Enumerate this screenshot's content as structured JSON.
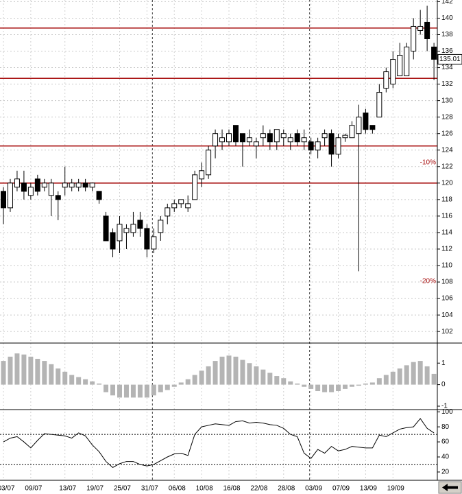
{
  "chart_data": [
    {
      "type": "candlestick",
      "categories": [
        "03/07",
        null,
        null,
        null,
        "09/07",
        null,
        null,
        null,
        null,
        "13/07",
        null,
        null,
        null,
        "19/07",
        null,
        null,
        null,
        "25/07",
        null,
        null,
        null,
        "31/07",
        null,
        null,
        null,
        "06/08",
        null,
        null,
        null,
        "10/08",
        null,
        null,
        null,
        "16/08",
        null,
        null,
        null,
        "22/08",
        null,
        null,
        null,
        "28/08",
        null,
        null,
        null,
        "03/09",
        null,
        null,
        null,
        "07/09",
        null,
        null,
        null,
        "13/09",
        null,
        null,
        null,
        "19/09",
        null,
        null,
        null,
        null,
        null,
        null
      ],
      "open": [
        119,
        117,
        119.5,
        120,
        118.5,
        120.5,
        119.5,
        118.5,
        118.5,
        119.5,
        119.5,
        119.5,
        120,
        119.5,
        119,
        116,
        114,
        113,
        114,
        114,
        115.5,
        114.5,
        112,
        114,
        116,
        117,
        117.5,
        117,
        118,
        120.5,
        121,
        124.5,
        125,
        125,
        127,
        126,
        125,
        124.5,
        125.5,
        126,
        125,
        125.5,
        125,
        126,
        125,
        125,
        124,
        125.5,
        126,
        123.5,
        125.5,
        125.5,
        126,
        128.5,
        127,
        128,
        131.5,
        132,
        133,
        133,
        136,
        138.5,
        139.5,
        136.5
      ],
      "high": [
        119.5,
        120.5,
        121.5,
        121.5,
        120,
        121,
        120.5,
        120.5,
        119,
        122,
        120.5,
        120.5,
        120.5,
        120,
        119,
        116.5,
        114.5,
        116,
        115,
        116.5,
        116.5,
        115,
        114.5,
        116,
        117.5,
        118,
        118,
        118.5,
        121.5,
        122.5,
        124.5,
        126.5,
        126.5,
        126.5,
        127,
        126,
        126.5,
        125.5,
        127,
        126.5,
        126.5,
        126.5,
        126,
        126.5,
        126.5,
        125.5,
        125.5,
        126.5,
        126.5,
        126,
        126,
        127.5,
        129.5,
        129,
        127,
        132,
        134,
        136,
        137,
        137,
        140,
        141,
        141.5,
        137
      ],
      "low": [
        115,
        116.5,
        119,
        118,
        118,
        118.5,
        119,
        116,
        115.5,
        118.5,
        119,
        119,
        119,
        119,
        117.5,
        113,
        111,
        111.5,
        112,
        113.5,
        113.5,
        111,
        111.5,
        113,
        115,
        116.5,
        117,
        116.5,
        118,
        119.5,
        120.5,
        123,
        124,
        124.5,
        124.5,
        122,
        124.5,
        123,
        124.5,
        124,
        124,
        124.5,
        124,
        124.5,
        124,
        123.5,
        123,
        124.5,
        122,
        123,
        125,
        125.5,
        109.3,
        126,
        126,
        128,
        131,
        131.5,
        133,
        133,
        135,
        138,
        136,
        132.5
      ],
      "close": [
        117,
        120,
        120.5,
        119,
        119.5,
        119,
        120,
        120,
        118,
        120,
        120,
        120,
        119.5,
        120,
        118,
        113,
        112,
        115,
        114.5,
        115,
        114.5,
        112,
        113.5,
        115.5,
        117,
        117.5,
        118,
        117.5,
        121,
        121.5,
        124,
        126,
        125.5,
        126,
        125,
        125,
        125.5,
        125,
        126,
        125,
        126.5,
        126,
        125.5,
        125,
        125.5,
        124,
        125,
        126,
        123.5,
        125.5,
        125.8,
        127,
        128,
        126.5,
        126.5,
        131,
        133.5,
        135,
        135.5,
        136.5,
        139,
        139,
        137.5,
        135.01
      ],
      "up_color": "#ffffff",
      "down_color": "#000000",
      "ylim": [
        100.6,
        142.2
      ],
      "yticks": [
        102,
        104,
        106,
        108,
        110,
        112,
        114,
        116,
        118,
        120,
        122,
        124,
        126,
        128,
        130,
        132,
        134,
        136,
        138,
        140,
        142
      ],
      "levels": [
        138.8,
        132.7,
        124.5,
        120
      ],
      "level_color": "#a81010",
      "annotations": [
        {
          "text": "-10%",
          "y": 122.5
        },
        {
          "text": "-20%",
          "y": 108.1
        }
      ],
      "last_price": 135.01,
      "grid": true
    },
    {
      "type": "bar",
      "color": "#b4b4b4",
      "values": [
        1.1,
        1.3,
        1.45,
        1.4,
        1.3,
        1.2,
        1.1,
        0.95,
        0.75,
        0.6,
        0.45,
        0.35,
        0.25,
        0.15,
        0.05,
        -0.35,
        -0.5,
        -0.6,
        -0.6,
        -0.6,
        -0.6,
        -0.6,
        -0.5,
        -0.35,
        -0.25,
        -0.1,
        0.1,
        0.25,
        0.45,
        0.65,
        0.85,
        1.1,
        1.3,
        1.35,
        1.3,
        1.15,
        1.0,
        0.85,
        0.7,
        0.55,
        0.4,
        0.3,
        0.15,
        0.05,
        -0.1,
        -0.2,
        -0.3,
        -0.35,
        -0.35,
        -0.3,
        -0.2,
        -0.1,
        -0.05,
        0.05,
        0.1,
        0.3,
        0.45,
        0.6,
        0.75,
        0.9,
        1.05,
        1.1,
        0.85,
        0.5
      ],
      "ylim": [
        -1.16,
        1.9
      ],
      "yticks": [
        -1,
        0,
        1
      ]
    },
    {
      "type": "line",
      "color": "#000000",
      "values": [
        60,
        65,
        67,
        60,
        52,
        62,
        71,
        70,
        69,
        68,
        65,
        72,
        68,
        56,
        47,
        34,
        26,
        31,
        34,
        34,
        30,
        28,
        30,
        35,
        40,
        44,
        45,
        42,
        70,
        80,
        82,
        84,
        83,
        82,
        87,
        88,
        85,
        86,
        85,
        83,
        82,
        78,
        70,
        67,
        45,
        38,
        50,
        45,
        54,
        48,
        50,
        54,
        53,
        52,
        52,
        69,
        67,
        72,
        77,
        79,
        80,
        91,
        78,
        72
      ],
      "ylim": [
        9,
        102
      ],
      "yticks": [
        20,
        40,
        60,
        80,
        100
      ],
      "levels": [
        30,
        70
      ]
    }
  ]
}
